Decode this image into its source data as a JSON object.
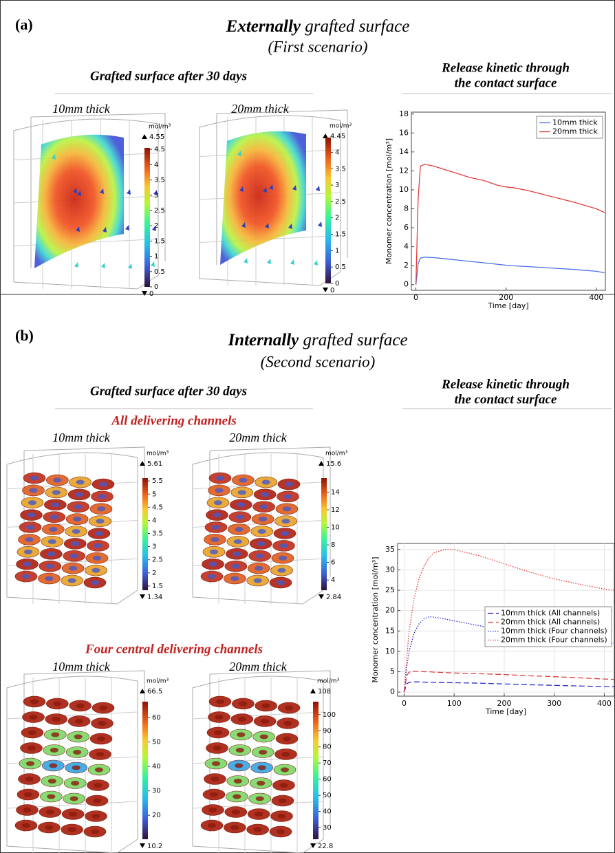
{
  "panels": [
    {
      "label": "(a)",
      "title_emphasis": "Externally",
      "title": "grafted surface",
      "subtitle": "(First scenario)",
      "left_heading": "Grafted surface after 30 days",
      "right_heading": [
        "Release kinetic through",
        "the contact surface"
      ],
      "renders": [
        {
          "label": "10mm thick",
          "colorbar": {
            "unit": "mol/m³",
            "max": 4.55,
            "min": 0,
            "ticks": [
              0,
              0.5,
              1,
              1.5,
              2,
              2.5,
              3,
              3.5,
              4,
              4.5
            ]
          }
        },
        {
          "label": "20mm thick",
          "colorbar": {
            "unit": "mol/m³",
            "max": 4.45,
            "min": 0,
            "ticks": [
              0,
              0.5,
              1,
              1.5,
              2,
              2.5,
              3,
              3.5,
              4
            ]
          }
        }
      ]
    },
    {
      "label": "(b)",
      "title_emphasis": "Internally",
      "title": "grafted surface",
      "subtitle": "(Second scenario)",
      "left_heading": "Grafted surface after 30 days",
      "right_heading": [
        "Release kinetic through",
        "the contact surface"
      ],
      "groups": [
        {
          "heading": "All delivering channels",
          "renders": [
            {
              "label": "10mm thick",
              "colorbar": {
                "unit": "mol/m³",
                "max": 5.61,
                "min": 1.34,
                "ticks": [
                  1.5,
                  2,
                  2.5,
                  3,
                  3.5,
                  4,
                  4.5,
                  5,
                  5.5
                ]
              }
            },
            {
              "label": "20mm thick",
              "colorbar": {
                "unit": "mol/m³",
                "max": 15.6,
                "min": 2.84,
                "ticks": [
                  4,
                  6,
                  8,
                  10,
                  12,
                  14
                ]
              }
            }
          ]
        },
        {
          "heading": "Four central delivering channels",
          "renders": [
            {
              "label": "10mm thick",
              "colorbar": {
                "unit": "mol/m³",
                "max": 66.5,
                "min": 10.2,
                "ticks": [
                  20,
                  30,
                  40,
                  50,
                  60
                ]
              }
            },
            {
              "label": "20mm thick",
              "colorbar": {
                "unit": "mol/m³",
                "max": 108,
                "min": 22.8,
                "ticks": [
                  30,
                  40,
                  50,
                  60,
                  70,
                  80,
                  90,
                  100
                ]
              }
            }
          ]
        }
      ]
    }
  ],
  "chart_data": [
    {
      "type": "line",
      "xlabel": "Time [day]",
      "ylabel": "Monomer concentration [mol/m³]",
      "x": [
        0,
        5,
        10,
        20,
        40,
        60,
        80,
        100,
        120,
        150,
        180,
        200,
        220,
        250,
        300,
        350,
        400,
        418
      ],
      "series": [
        {
          "name": "10mm thick",
          "color": "#4a6fe3",
          "dash": "solid",
          "values": [
            0,
            2.2,
            2.8,
            2.9,
            2.85,
            2.75,
            2.65,
            2.55,
            2.45,
            2.3,
            2.15,
            2.05,
            1.98,
            1.9,
            1.75,
            1.6,
            1.4,
            1.25
          ]
        },
        {
          "name": "20mm thick",
          "color": "#e03c3c",
          "dash": "solid",
          "values": [
            0,
            9,
            12.5,
            12.7,
            12.5,
            12.2,
            11.9,
            11.6,
            11.3,
            11.0,
            10.5,
            10.3,
            10.2,
            9.9,
            9.3,
            8.7,
            8.0,
            7.6
          ]
        }
      ],
      "xlim": [
        -10,
        420
      ],
      "ylim": [
        -0.6,
        18.2
      ],
      "xticks": [
        0,
        200,
        400
      ],
      "yticks": [
        0,
        2,
        4,
        6,
        8,
        10,
        12,
        14,
        16,
        18
      ],
      "grid": false,
      "legend": "upper right"
    },
    {
      "type": "line",
      "xlabel": "Time [day]",
      "ylabel": "Monomer concentration [mol/m³]",
      "x": [
        0,
        5,
        10,
        20,
        30,
        40,
        50,
        60,
        80,
        100,
        150,
        200,
        250,
        300,
        350,
        400,
        420
      ],
      "series": [
        {
          "name": "10mm thick (All channels)",
          "color": "#2a2ad0",
          "dash": "dashed",
          "values": [
            0,
            2,
            2.4,
            2.5,
            2.5,
            2.45,
            2.4,
            2.4,
            2.35,
            2.3,
            2.2,
            2.0,
            1.8,
            1.65,
            1.5,
            1.35,
            1.3
          ]
        },
        {
          "name": "20mm thick (All channels)",
          "color": "#e03c3c",
          "dash": "dashed",
          "values": [
            0,
            4,
            4.9,
            5.1,
            5.1,
            5.0,
            5.0,
            4.9,
            4.8,
            4.7,
            4.5,
            4.3,
            4.0,
            3.8,
            3.5,
            3.2,
            3.1
          ]
        },
        {
          "name": "10mm thick (Four channels)",
          "color": "#2a2ad0",
          "dash": "dotted",
          "values": [
            0,
            6,
            10,
            14.5,
            16.8,
            18,
            18.5,
            18.4,
            18.0,
            17.5,
            16.3,
            15.2,
            14.2,
            13.3,
            12.7,
            12.2,
            12
          ]
        },
        {
          "name": "20mm thick (Four channels)",
          "color": "#e03c3c",
          "dash": "dotted",
          "values": [
            0,
            8,
            15,
            23,
            28,
            31,
            33,
            34.2,
            35,
            35,
            33.5,
            31.5,
            29.5,
            27.8,
            26.5,
            25.3,
            25
          ]
        }
      ],
      "xlim": [
        -13,
        420
      ],
      "ylim": [
        -1,
        36.5
      ],
      "xticks": [
        0,
        100,
        200,
        300,
        400
      ],
      "yticks": [
        0,
        5,
        10,
        15,
        20,
        25,
        30,
        35
      ],
      "grid": true,
      "legend": "center right"
    }
  ]
}
